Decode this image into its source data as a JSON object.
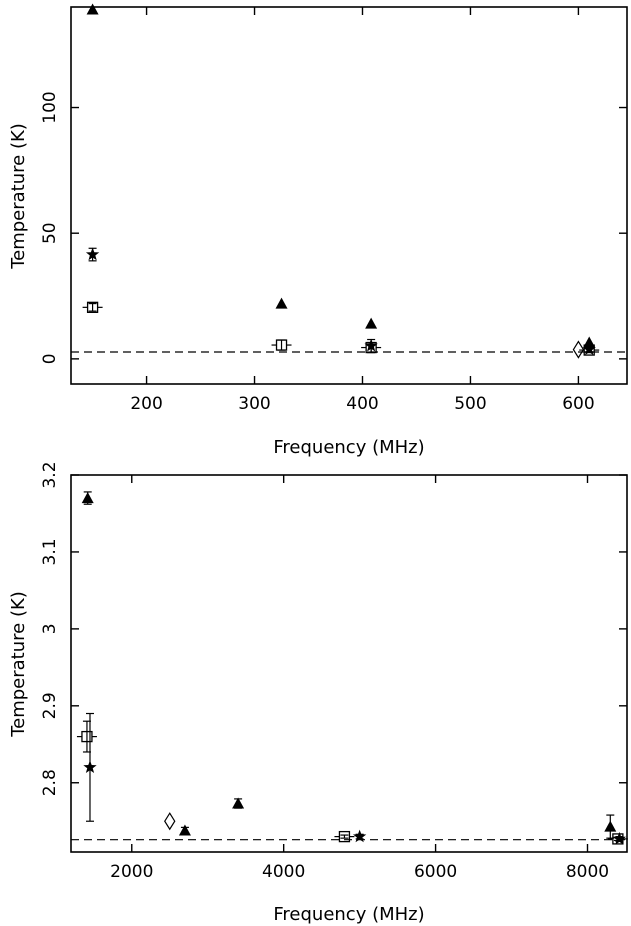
{
  "chart_data": [
    {
      "type": "scatter",
      "xlabel": "Frequency (MHz)",
      "ylabel": "Temperature (K)",
      "xlim": [
        130,
        645
      ],
      "ylim": [
        -10,
        140
      ],
      "xticks": [
        200,
        300,
        400,
        500,
        600
      ],
      "yticks": [
        0,
        50,
        100
      ],
      "reference_line": 2.73,
      "series": [
        {
          "marker": "filled-triangle",
          "points": [
            {
              "x": 150,
              "y": 139
            },
            {
              "x": 325,
              "y": 22
            },
            {
              "x": 408,
              "y": 14
            },
            {
              "x": 610,
              "y": 6.5
            }
          ]
        },
        {
          "marker": "filled-star",
          "points": [
            {
              "x": 150,
              "y": 41.5,
              "err": 2.5
            },
            {
              "x": 408,
              "y": 5.2,
              "err": 2.5
            },
            {
              "x": 610,
              "y": 3.8,
              "err": 1
            }
          ]
        },
        {
          "marker": "open-square",
          "points": [
            {
              "x": 150,
              "y": 20.5,
              "err": 1.5
            },
            {
              "x": 325,
              "y": 5.5,
              "err": 2
            },
            {
              "x": 408,
              "y": 4.5,
              "err": 2
            },
            {
              "x": 610,
              "y": 3.5,
              "err": 1
            }
          ]
        },
        {
          "marker": "open-diamond",
          "points": [
            {
              "x": 600,
              "y": 3.7
            }
          ]
        }
      ]
    },
    {
      "type": "scatter",
      "xlabel": "Frequency (MHz)",
      "ylabel": "Temperature (K)",
      "xlim": [
        1200,
        8520
      ],
      "ylim": [
        2.71,
        3.2
      ],
      "xticks": [
        2000,
        4000,
        6000,
        8000
      ],
      "yticks": [
        2.8,
        2.9,
        3,
        3.1,
        3.2
      ],
      "ytick_labels": [
        "2.8",
        "2.9",
        "3",
        "3.1",
        "3.2"
      ],
      "reference_line": 2.726,
      "series": [
        {
          "marker": "filled-triangle",
          "points": [
            {
              "x": 1420,
              "y": 3.17,
              "err": 0.008
            },
            {
              "x": 2700,
              "y": 2.738,
              "err": 0.004
            },
            {
              "x": 3400,
              "y": 2.773,
              "err": 0.006
            },
            {
              "x": 8300,
              "y": 2.743,
              "err": 0.015
            }
          ]
        },
        {
          "marker": "filled-star",
          "points": [
            {
              "x": 1450,
              "y": 2.82,
              "err": 0.07
            },
            {
              "x": 5000,
              "y": 2.73,
              "err": 0.003
            },
            {
              "x": 8420,
              "y": 2.727,
              "err": 0.003
            }
          ]
        },
        {
          "marker": "open-square",
          "points": [
            {
              "x": 1410,
              "y": 2.86,
              "err": 0.02
            },
            {
              "x": 4800,
              "y": 2.73,
              "err": 0.002
            },
            {
              "x": 8400,
              "y": 2.727,
              "err": 0.002
            }
          ]
        },
        {
          "marker": "open-diamond",
          "points": [
            {
              "x": 2500,
              "y": 2.75
            }
          ]
        }
      ]
    }
  ]
}
